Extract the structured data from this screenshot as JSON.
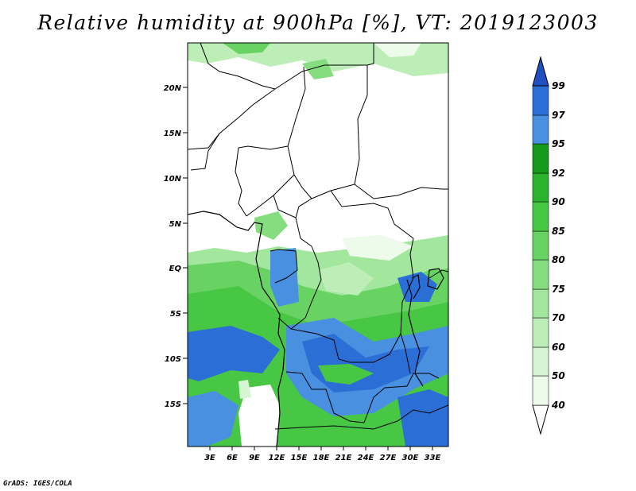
{
  "title": "Relative humidity at 900hPa [%], VT: 2019123003",
  "credit": "GrADS: IGES/COLA",
  "lat_ticks": [
    "20N",
    "15N",
    "10N",
    "5N",
    "EQ",
    "5S",
    "10S",
    "15S"
  ],
  "lon_ticks": [
    "3E",
    "6E",
    "9E",
    "12E",
    "15E",
    "18E",
    "21E",
    "24E",
    "27E",
    "30E",
    "33E"
  ],
  "colorbar": {
    "levels": [
      "40",
      "50",
      "60",
      "70",
      "75",
      "80",
      "85",
      "90",
      "92",
      "95",
      "97",
      "99"
    ],
    "colors": [
      "#ffffff",
      "#ecfbea",
      "#d6f5d2",
      "#bdeeb8",
      "#a3e69d",
      "#86dd80",
      "#68d363",
      "#48c745",
      "#2bb32e",
      "#169a1c",
      "#4a90e0",
      "#2b6fd6",
      "#1f4fc0"
    ]
  }
}
